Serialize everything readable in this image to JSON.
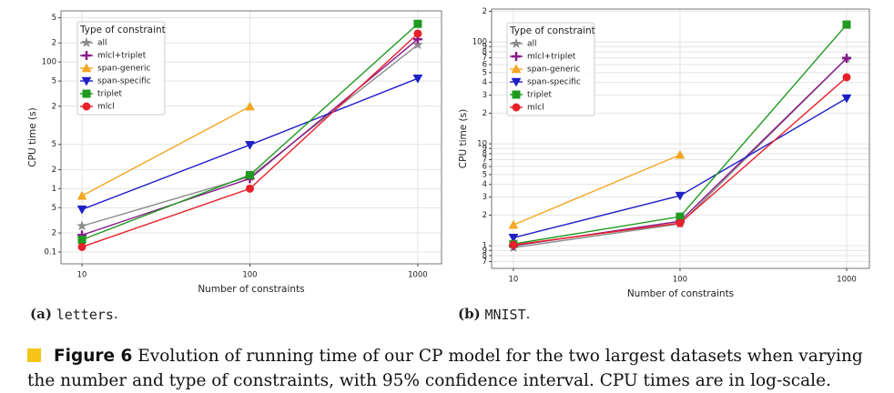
{
  "chart_data": [
    {
      "type": "line",
      "log_x": true,
      "log_y": true,
      "grid": true,
      "xlabel": "Number of constraints",
      "ylabel": "CPU time (s)",
      "legend_title": "Type of constraint",
      "legend": "upper left",
      "caption": {
        "label": "(a)",
        "name": "letters",
        "suffix": "."
      },
      "x": [
        10,
        100,
        1000
      ],
      "xlim": [
        7.5,
        1385
      ],
      "xticks": [
        10,
        100,
        1000
      ],
      "ylim": [
        0.065,
        640
      ],
      "yticks": [
        {
          "value": 500,
          "label": "5"
        },
        {
          "value": 200,
          "label": "2"
        },
        100,
        {
          "value": 50,
          "label": "5"
        },
        {
          "value": 20,
          "label": "2"
        },
        {
          "value": 5,
          "label": "5"
        },
        {
          "value": 2,
          "label": "2"
        },
        1,
        {
          "value": 0.5,
          "label": "5"
        },
        {
          "value": 0.2,
          "label": "2"
        },
        0.1
      ],
      "series": [
        {
          "name": "all",
          "color": "#8c8c8c",
          "marker": "star",
          "values": [
            0.257,
            1.54,
            187
          ]
        },
        {
          "name": "mlcl+triplet",
          "color": "#8b1a8b",
          "marker": "plus",
          "values": [
            0.185,
            1.44,
            229
          ]
        },
        {
          "name": "span-generic",
          "color": "#f5a623",
          "marker": "triangle-up",
          "values": [
            0.77,
            19.8,
            null
          ]
        },
        {
          "name": "span-specific",
          "color": "#1f1fc8",
          "marker": "triangle-down",
          "values": [
            0.47,
            4.9,
            55
          ]
        },
        {
          "name": "triplet",
          "color": "#1f9a1f",
          "marker": "square",
          "values": [
            0.156,
            1.64,
            400
          ]
        },
        {
          "name": "mlcl",
          "color": "#e8202a",
          "marker": "circle",
          "values": [
            0.12,
            1.0,
            280
          ]
        }
      ]
    },
    {
      "type": "line",
      "log_x": true,
      "log_y": true,
      "grid": true,
      "xlabel": "Number of constraints",
      "ylabel": "CPU time (s)",
      "legend_title": "Type of constraint",
      "legend": "upper left",
      "caption": {
        "label": "(b)",
        "name": "MNIST",
        "suffix": "."
      },
      "x": [
        10,
        100,
        1000
      ],
      "xlim": [
        7.4,
        1370
      ],
      "xticks": [
        10,
        100,
        1000
      ],
      "ylim": [
        0.6,
        210
      ],
      "yticks": [
        {
          "value": 200,
          "label": "2"
        },
        100,
        {
          "value": 90,
          "label": "9"
        },
        {
          "value": 80,
          "label": "8"
        },
        {
          "value": 70,
          "label": "7"
        },
        {
          "value": 60,
          "label": "6"
        },
        {
          "value": 50,
          "label": "5"
        },
        {
          "value": 40,
          "label": "4"
        },
        {
          "value": 30,
          "label": "3"
        },
        {
          "value": 20,
          "label": "2"
        },
        10,
        9,
        8,
        7,
        6,
        5,
        4,
        3,
        2,
        1,
        {
          "value": 0.9,
          "label": "9"
        },
        {
          "value": 0.8,
          "label": "8"
        },
        {
          "value": 0.7,
          "label": "7"
        }
      ],
      "series": [
        {
          "name": "all",
          "color": "#8c8c8c",
          "marker": "star",
          "values": [
            0.96,
            1.64,
            69
          ]
        },
        {
          "name": "mlcl+triplet",
          "color": "#8b1a8b",
          "marker": "plus",
          "values": [
            1.0,
            1.74,
            69
          ]
        },
        {
          "name": "span-generic",
          "color": "#f5a623",
          "marker": "triangle-up",
          "values": [
            1.6,
            7.8,
            null
          ]
        },
        {
          "name": "span-specific",
          "color": "#1f1fc8",
          "marker": "triangle-down",
          "values": [
            1.2,
            3.1,
            28
          ]
        },
        {
          "name": "triplet",
          "color": "#1f9a1f",
          "marker": "square",
          "values": [
            1.04,
            1.93,
            148
          ]
        },
        {
          "name": "mlcl",
          "color": "#e8202a",
          "marker": "circle",
          "values": [
            1.02,
            1.67,
            45
          ]
        }
      ]
    }
  ],
  "figure_caption": {
    "label": "Figure 6",
    "text": "Evolution of running time of our CP model for the two largest datasets when varying the number and type of constraints, with 95% confidence interval. CPU times are in log-scale."
  }
}
